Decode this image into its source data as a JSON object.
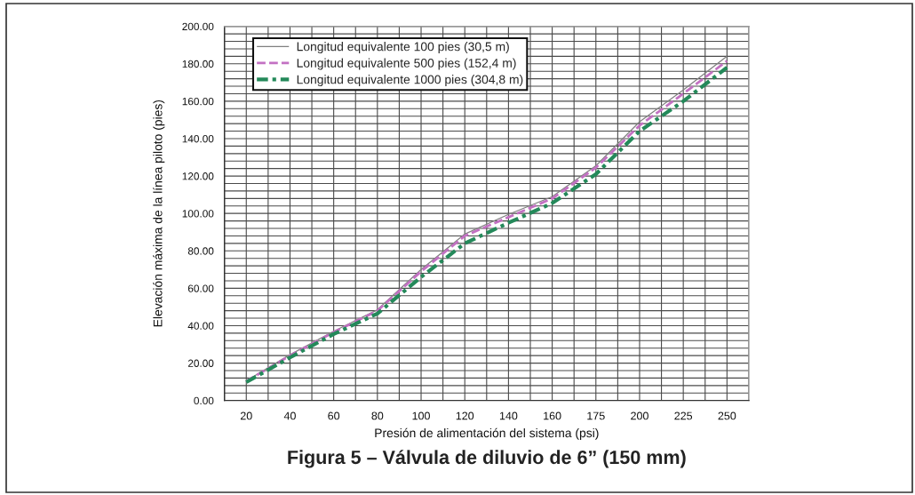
{
  "chart_data": {
    "type": "line",
    "title": "Figura 5 – Válvula de diluvio de 6” (150 mm)",
    "xlabel": "Presión de alimentación del sistema (psi)",
    "ylabel": "Elevación máxima de la línea piloto (pies)",
    "categories": [
      "20",
      "40",
      "60",
      "80",
      "100",
      "120",
      "140",
      "160",
      "175",
      "200",
      "225",
      "250"
    ],
    "series": [
      {
        "name": "Longitud equivalente 100 pies (30,5 m)",
        "color": "#808080",
        "line_style": "solid",
        "values": [
          10.5,
          24.5,
          37,
          48.5,
          70,
          89,
          99.5,
          109,
          125.5,
          149,
          166,
          184
        ]
      },
      {
        "name": "Longitud equivalente 500 pies (152,4 m)",
        "color": "#c371c3",
        "line_style": "dashed",
        "values": [
          10.3,
          24,
          36.5,
          48,
          69,
          88,
          98,
          108,
          124.5,
          147,
          164,
          181.5
        ]
      },
      {
        "name": "Longitud equivalente 1000 pies (304,8 m)",
        "color": "#24895a",
        "line_style": "dashed",
        "values": [
          9.8,
          23,
          35.5,
          46.5,
          66,
          84,
          95,
          105.5,
          121,
          144,
          160,
          178
        ]
      }
    ],
    "ylim": [
      0,
      200
    ],
    "yticks": [
      {
        "value": 0,
        "label": "0.00"
      },
      {
        "value": 20,
        "label": "20.00"
      },
      {
        "value": 40,
        "label": "40.00"
      },
      {
        "value": 60,
        "label": "60.00"
      },
      {
        "value": 80,
        "label": "80.00"
      },
      {
        "value": 100,
        "label": "100.00"
      },
      {
        "value": 120,
        "label": "120.00"
      },
      {
        "value": 140,
        "label": "140.00"
      },
      {
        "value": 160,
        "label": "160.00"
      },
      {
        "value": 180,
        "label": "180.00"
      },
      {
        "value": 200,
        "label": "200.00"
      }
    ],
    "grid": true,
    "legend": "top left"
  }
}
